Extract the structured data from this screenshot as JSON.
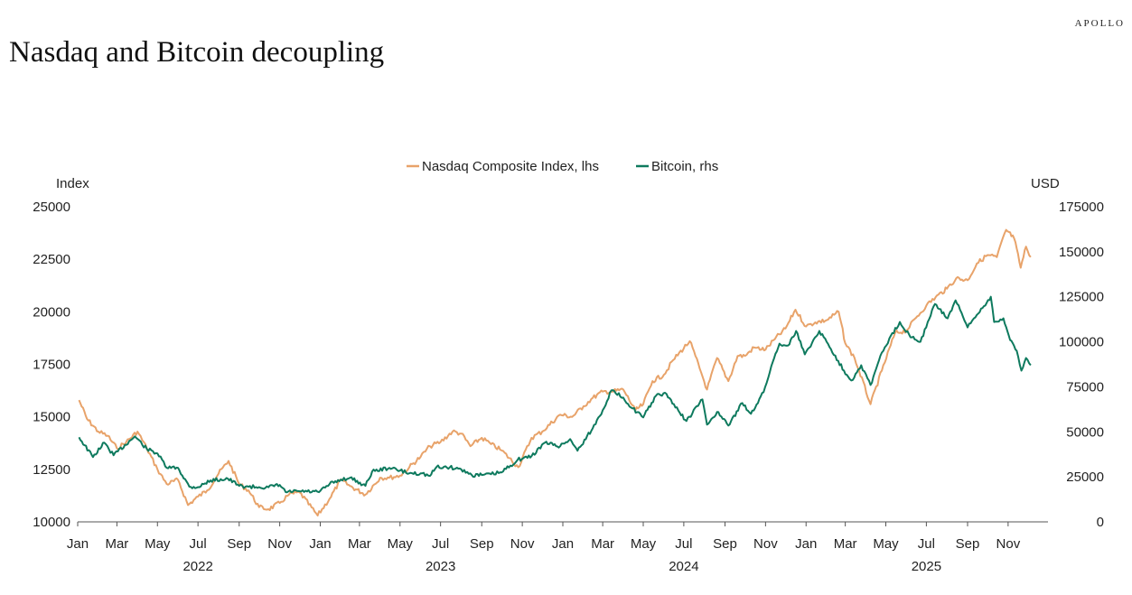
{
  "brand": "APOLLO",
  "title": "Nasdaq and Bitcoin decoupling",
  "colors": {
    "nasdaq": "#E8A36A",
    "bitcoin": "#0E7A5E",
    "axis": "#555555"
  },
  "chart_data": {
    "type": "line",
    "title": "Nasdaq and Bitcoin decoupling",
    "legend_position": "top-center",
    "grid": false,
    "left_axis": {
      "label": "Index",
      "ticks": [
        10000,
        12500,
        15000,
        17500,
        20000,
        22500,
        25000
      ],
      "range": [
        10000,
        25000
      ]
    },
    "right_axis": {
      "label": "USD",
      "ticks": [
        0,
        25000,
        50000,
        75000,
        100000,
        125000,
        150000,
        175000
      ],
      "range": [
        0,
        175000
      ]
    },
    "x_axis": {
      "month_labels": [
        "Jan",
        "Mar",
        "May",
        "Jul",
        "Sep",
        "Nov",
        "Jan",
        "Mar",
        "May",
        "Jul",
        "Sep",
        "Nov",
        "Jan",
        "Mar",
        "May",
        "Jul",
        "Sep",
        "Nov",
        "Jan",
        "Mar",
        "May",
        "Jul",
        "Sep",
        "Nov"
      ],
      "year_labels": [
        "2022",
        "2023",
        "2024",
        "2025"
      ],
      "range": [
        "2022-01",
        "2025-12"
      ]
    },
    "series": [
      {
        "name": "Nasdaq Composite Index, lhs",
        "axis": "left",
        "points": [
          [
            "2022-01-03",
            15800
          ],
          [
            "2022-01-15",
            14900
          ],
          [
            "2022-02-01",
            14300
          ],
          [
            "2022-02-15",
            14100
          ],
          [
            "2022-03-01",
            13500
          ],
          [
            "2022-03-15",
            13800
          ],
          [
            "2022-04-01",
            14300
          ],
          [
            "2022-04-15",
            13500
          ],
          [
            "2022-05-01",
            12500
          ],
          [
            "2022-05-15",
            11800
          ],
          [
            "2022-06-01",
            12000
          ],
          [
            "2022-06-16",
            10800
          ],
          [
            "2022-07-01",
            11200
          ],
          [
            "2022-07-15",
            11500
          ],
          [
            "2022-08-01",
            12300
          ],
          [
            "2022-08-16",
            12900
          ],
          [
            "2022-09-01",
            11800
          ],
          [
            "2022-09-15",
            11500
          ],
          [
            "2022-10-01",
            10700
          ],
          [
            "2022-10-15",
            10600
          ],
          [
            "2022-11-01",
            10900
          ],
          [
            "2022-11-15",
            11300
          ],
          [
            "2022-12-01",
            11400
          ],
          [
            "2022-12-28",
            10300
          ],
          [
            "2023-01-15",
            11100
          ],
          [
            "2023-02-01",
            12000
          ],
          [
            "2023-02-15",
            11700
          ],
          [
            "2023-03-10",
            11300
          ],
          [
            "2023-04-01",
            12100
          ],
          [
            "2023-04-15",
            12100
          ],
          [
            "2023-05-01",
            12200
          ],
          [
            "2023-05-15",
            12600
          ],
          [
            "2023-06-01",
            13100
          ],
          [
            "2023-06-15",
            13600
          ],
          [
            "2023-07-01",
            13800
          ],
          [
            "2023-07-19",
            14300
          ],
          [
            "2023-08-01",
            14200
          ],
          [
            "2023-08-15",
            13600
          ],
          [
            "2023-09-01",
            14000
          ],
          [
            "2023-09-15",
            13700
          ],
          [
            "2023-10-01",
            13400
          ],
          [
            "2023-10-26",
            12600
          ],
          [
            "2023-11-15",
            14000
          ],
          [
            "2023-12-01",
            14300
          ],
          [
            "2023-12-28",
            15100
          ],
          [
            "2024-01-15",
            15000
          ],
          [
            "2024-02-01",
            15500
          ],
          [
            "2024-02-15",
            15900
          ],
          [
            "2024-03-01",
            16200
          ],
          [
            "2024-03-15",
            16200
          ],
          [
            "2024-04-01",
            16300
          ],
          [
            "2024-04-19",
            15300
          ],
          [
            "2024-05-01",
            15600
          ],
          [
            "2024-05-15",
            16700
          ],
          [
            "2024-06-01",
            17000
          ],
          [
            "2024-06-15",
            17700
          ],
          [
            "2024-07-10",
            18600
          ],
          [
            "2024-07-25",
            17300
          ],
          [
            "2024-08-05",
            16300
          ],
          [
            "2024-08-20",
            17800
          ],
          [
            "2024-09-06",
            16700
          ],
          [
            "2024-09-20",
            17900
          ],
          [
            "2024-10-01",
            17900
          ],
          [
            "2024-10-15",
            18300
          ],
          [
            "2024-11-01",
            18200
          ],
          [
            "2024-11-15",
            18700
          ],
          [
            "2024-12-01",
            19200
          ],
          [
            "2024-12-16",
            20100
          ],
          [
            "2025-01-01",
            19300
          ],
          [
            "2025-01-15",
            19500
          ],
          [
            "2025-02-01",
            19600
          ],
          [
            "2025-02-19",
            20000
          ],
          [
            "2025-03-01",
            18500
          ],
          [
            "2025-03-15",
            17800
          ],
          [
            "2025-04-08",
            15600
          ],
          [
            "2025-04-25",
            17200
          ],
          [
            "2025-05-15",
            19000
          ],
          [
            "2025-06-01",
            19100
          ],
          [
            "2025-06-15",
            19700
          ],
          [
            "2025-07-01",
            20300
          ],
          [
            "2025-07-15",
            20700
          ],
          [
            "2025-08-01",
            21100
          ],
          [
            "2025-08-15",
            21600
          ],
          [
            "2025-09-01",
            21500
          ],
          [
            "2025-09-15",
            22300
          ],
          [
            "2025-10-01",
            22700
          ],
          [
            "2025-10-15",
            22600
          ],
          [
            "2025-10-29",
            23900
          ],
          [
            "2025-11-10",
            23500
          ],
          [
            "2025-11-20",
            22100
          ],
          [
            "2025-11-28",
            23100
          ],
          [
            "2025-12-05",
            22600
          ]
        ]
      },
      {
        "name": "Bitcoin, rhs",
        "axis": "right",
        "points": [
          [
            "2022-01-03",
            47000
          ],
          [
            "2022-01-24",
            36000
          ],
          [
            "2022-02-10",
            44000
          ],
          [
            "2022-02-24",
            37000
          ],
          [
            "2022-03-28",
            47500
          ],
          [
            "2022-04-15",
            40500
          ],
          [
            "2022-05-01",
            38000
          ],
          [
            "2022-05-15",
            30000
          ],
          [
            "2022-06-01",
            30000
          ],
          [
            "2022-06-18",
            19500
          ],
          [
            "2022-07-01",
            19300
          ],
          [
            "2022-07-20",
            23000
          ],
          [
            "2022-08-15",
            24000
          ],
          [
            "2022-09-01",
            20000
          ],
          [
            "2022-09-15",
            19500
          ],
          [
            "2022-10-01",
            19300
          ],
          [
            "2022-10-15",
            19200
          ],
          [
            "2022-11-01",
            20500
          ],
          [
            "2022-11-10",
            16500
          ],
          [
            "2022-12-01",
            17000
          ],
          [
            "2022-12-30",
            16500
          ],
          [
            "2023-01-15",
            21000
          ],
          [
            "2023-02-01",
            23500
          ],
          [
            "2023-02-15",
            24500
          ],
          [
            "2023-03-10",
            20000
          ],
          [
            "2023-03-20",
            28000
          ],
          [
            "2023-04-15",
            30000
          ],
          [
            "2023-05-01",
            28500
          ],
          [
            "2023-05-15",
            27000
          ],
          [
            "2023-06-01",
            27000
          ],
          [
            "2023-06-15",
            25500
          ],
          [
            "2023-06-25",
            30500
          ],
          [
            "2023-07-15",
            30300
          ],
          [
            "2023-08-01",
            29200
          ],
          [
            "2023-08-17",
            26000
          ],
          [
            "2023-09-01",
            26000
          ],
          [
            "2023-09-15",
            26500
          ],
          [
            "2023-10-01",
            27500
          ],
          [
            "2023-10-25",
            34500
          ],
          [
            "2023-11-15",
            36500
          ],
          [
            "2023-12-05",
            44000
          ],
          [
            "2023-12-28",
            42000
          ],
          [
            "2024-01-12",
            46000
          ],
          [
            "2024-01-23",
            39500
          ],
          [
            "2024-02-15",
            52000
          ],
          [
            "2024-03-01",
            62000
          ],
          [
            "2024-03-14",
            73000
          ],
          [
            "2024-04-01",
            69000
          ],
          [
            "2024-04-15",
            63000
          ],
          [
            "2024-05-01",
            58000
          ],
          [
            "2024-05-20",
            70000
          ],
          [
            "2024-06-05",
            71000
          ],
          [
            "2024-06-25",
            60500
          ],
          [
            "2024-07-05",
            56000
          ],
          [
            "2024-07-29",
            68000
          ],
          [
            "2024-08-05",
            54000
          ],
          [
            "2024-08-20",
            61000
          ],
          [
            "2024-09-06",
            53500
          ],
          [
            "2024-09-27",
            66000
          ],
          [
            "2024-10-10",
            60000
          ],
          [
            "2024-10-29",
            72000
          ],
          [
            "2024-11-12",
            89000
          ],
          [
            "2024-11-22",
            99000
          ],
          [
            "2024-12-05",
            98000
          ],
          [
            "2024-12-17",
            106000
          ],
          [
            "2024-12-30",
            93000
          ],
          [
            "2025-01-21",
            106000
          ],
          [
            "2025-02-01",
            100000
          ],
          [
            "2025-02-27",
            84000
          ],
          [
            "2025-03-10",
            78500
          ],
          [
            "2025-03-25",
            87000
          ],
          [
            "2025-04-08",
            76000
          ],
          [
            "2025-04-25",
            94000
          ],
          [
            "2025-05-22",
            111000
          ],
          [
            "2025-06-05",
            104000
          ],
          [
            "2025-06-22",
            100000
          ],
          [
            "2025-07-14",
            121000
          ],
          [
            "2025-08-02",
            113000
          ],
          [
            "2025-08-14",
            123000
          ],
          [
            "2025-09-01",
            108000
          ],
          [
            "2025-09-15",
            115000
          ],
          [
            "2025-10-06",
            125000
          ],
          [
            "2025-10-11",
            111000
          ],
          [
            "2025-10-25",
            113000
          ],
          [
            "2025-11-04",
            101000
          ],
          [
            "2025-11-14",
            95000
          ],
          [
            "2025-11-21",
            84000
          ],
          [
            "2025-11-28",
            91000
          ],
          [
            "2025-12-05",
            87000
          ]
        ]
      }
    ]
  }
}
